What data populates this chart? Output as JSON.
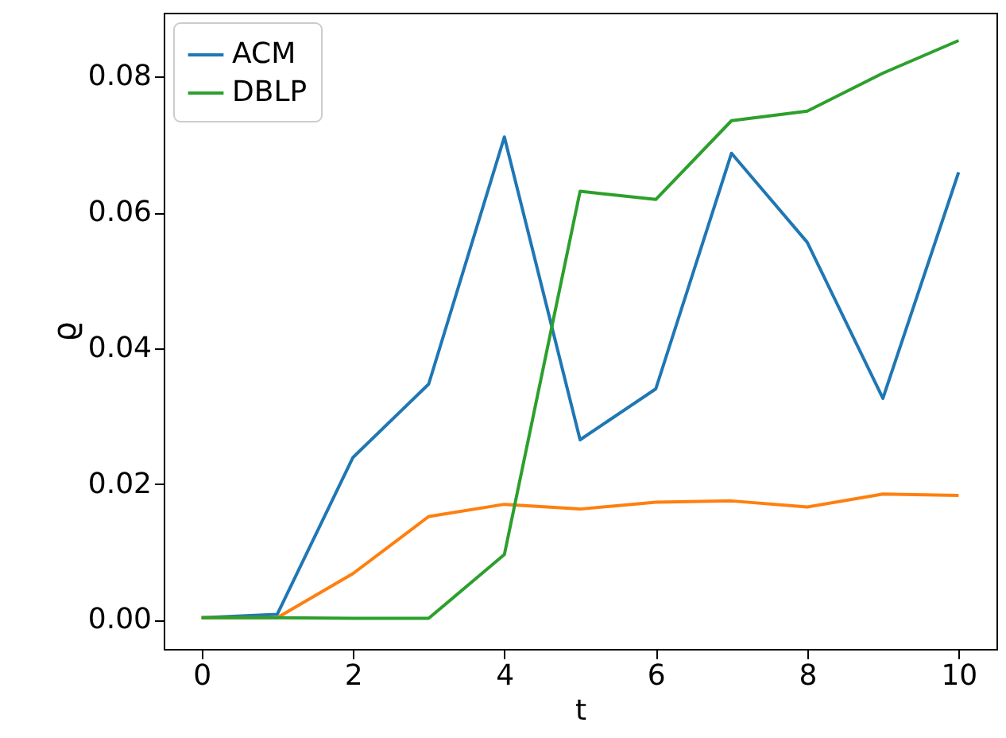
{
  "chart_data": {
    "type": "line",
    "xlabel": "t",
    "ylabel": "ϱ",
    "x": [
      0,
      1,
      2,
      3,
      4,
      5,
      6,
      7,
      8,
      9,
      10
    ],
    "series": [
      {
        "name": "ACM",
        "color": "#1f77b4",
        "values": [
          0.0003,
          0.0008,
          0.0239,
          0.0347,
          0.0711,
          0.0265,
          0.034,
          0.0687,
          0.0556,
          0.0326,
          0.0659
        ]
      },
      {
        "color": "#ff7f0e",
        "values": [
          0.0003,
          0.0003,
          0.0068,
          0.0152,
          0.017,
          0.0163,
          0.0173,
          0.0175,
          0.0166,
          0.0185,
          0.0183
        ]
      },
      {
        "name": "DBLP",
        "color": "#2ca02c",
        "values": [
          0.0003,
          0.0003,
          0.0002,
          0.0002,
          0.0096,
          0.0631,
          0.0619,
          0.0735,
          0.0749,
          0.0805,
          0.0853
        ]
      }
    ],
    "xlim": [
      -0.5,
      10.5
    ],
    "xticks": [
      0,
      2,
      4,
      6,
      8,
      10
    ],
    "ylim": [
      -0.0043,
      0.0894
    ],
    "yticks": [
      {
        "value": 0,
        "label": "0.00"
      },
      {
        "value": 0.02,
        "label": "0.02"
      },
      {
        "value": 0.04,
        "label": "0.04"
      },
      {
        "value": 0.06,
        "label": "0.06"
      },
      {
        "value": 0.08,
        "label": "0.08"
      }
    ],
    "legend": "top left",
    "grid": false,
    "marker": "none",
    "line_style": "solid"
  }
}
